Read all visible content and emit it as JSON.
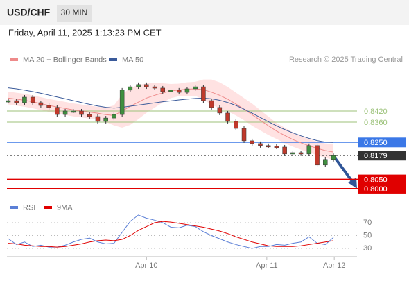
{
  "header": {
    "symbol": "USD/CHF",
    "timeframe": "30 MIN",
    "timestamp": "Friday, April 11, 2025 1:13:23 PM CET",
    "credit": "Research © 2025 Trading Central"
  },
  "chart_data": [
    {
      "type": "candle-line",
      "values": [
        0.8476,
        0.8465,
        0.8495,
        0.8465,
        0.845,
        0.8439,
        0.8401,
        0.842,
        0.842,
        0.8401,
        0.839,
        0.8364,
        0.8382,
        0.8401,
        0.8533,
        0.8551,
        0.8563,
        0.8551,
        0.8544,
        0.8525,
        0.8533,
        0.8521,
        0.854,
        0.8551,
        0.8476,
        0.8439,
        0.8409,
        0.8364,
        0.8326,
        0.8259,
        0.8244,
        0.8233,
        0.8229,
        0.8225,
        0.8188,
        0.8195,
        0.8188,
        0.8233,
        0.8128,
        0.8158,
        0.8179
      ],
      "series": [
        {
          "name": "MA 20 + Bollinger Bands",
          "color": "#ee8a8a",
          "values": [
            0.849,
            0.8484,
            0.8478,
            0.847,
            0.846,
            0.845,
            0.8442,
            0.8434,
            0.8426,
            0.842,
            0.8414,
            0.8408,
            0.84,
            0.8396,
            0.842,
            0.8445,
            0.8468,
            0.849,
            0.8505,
            0.8518,
            0.8528,
            0.8534,
            0.8538,
            0.854,
            0.8536,
            0.8522,
            0.8505,
            0.8484,
            0.8458,
            0.843,
            0.84,
            0.837,
            0.834,
            0.8312,
            0.8288,
            0.8266,
            0.8248,
            0.8232,
            0.8218,
            0.8206,
            0.8198
          ]
        },
        {
          "name": "MA 50",
          "color": "#3a5a9a",
          "values": [
            0.8545,
            0.854,
            0.8533,
            0.8525,
            0.8516,
            0.8506,
            0.8496,
            0.8486,
            0.8476,
            0.8466,
            0.8456,
            0.8447,
            0.844,
            0.8436,
            0.844,
            0.8446,
            0.8452,
            0.8458,
            0.8464,
            0.847,
            0.8475,
            0.848,
            0.8484,
            0.8488,
            0.849,
            0.8486,
            0.8478,
            0.8466,
            0.845,
            0.843,
            0.8408,
            0.8385,
            0.8362,
            0.834,
            0.832,
            0.8302,
            0.8286,
            0.8272,
            0.826,
            0.8252,
            0.825
          ]
        }
      ],
      "band": {
        "color": "#ffd6d6",
        "upper": [
          0.8525,
          0.8519,
          0.8513,
          0.8505,
          0.8495,
          0.8485,
          0.8477,
          0.8469,
          0.8461,
          0.8455,
          0.8449,
          0.8443,
          0.844,
          0.845,
          0.851,
          0.8545,
          0.856,
          0.857,
          0.8572,
          0.857,
          0.8566,
          0.8568,
          0.8575,
          0.8578,
          0.859,
          0.859,
          0.8575,
          0.855,
          0.852,
          0.849,
          0.846,
          0.8425,
          0.839,
          0.8355,
          0.833,
          0.8305,
          0.8285,
          0.8268,
          0.8255,
          0.8245,
          0.824
        ],
        "lower": [
          0.8455,
          0.8449,
          0.8443,
          0.8435,
          0.8425,
          0.8415,
          0.8407,
          0.8399,
          0.8391,
          0.8385,
          0.8379,
          0.8373,
          0.836,
          0.8342,
          0.833,
          0.8345,
          0.8376,
          0.841,
          0.8438,
          0.8466,
          0.849,
          0.85,
          0.8501,
          0.8502,
          0.8482,
          0.8454,
          0.8435,
          0.8418,
          0.8396,
          0.837,
          0.834,
          0.8315,
          0.829,
          0.8269,
          0.8246,
          0.8227,
          0.8211,
          0.8196,
          0.8181,
          0.8167,
          0.8156
        ]
      },
      "up_color": "#3f8f3f",
      "down_color": "#c0392b",
      "levels": [
        {
          "value": 0.842,
          "label": "0.8420",
          "color": "#9cc27a",
          "style": "text"
        },
        {
          "value": 0.836,
          "label": "0.8360",
          "color": "#9cc27a",
          "style": "text"
        },
        {
          "value": 0.825,
          "label": "0.8250",
          "color": "#3b78e7",
          "style": "box"
        },
        {
          "value": 0.8179,
          "label": "0.8179",
          "color": "#333333",
          "style": "current"
        },
        {
          "value": 0.805,
          "label": "0.8050",
          "color": "#e00000",
          "style": "box"
        },
        {
          "value": 0.8,
          "label": "0.8000",
          "color": "#e00000",
          "style": "box"
        }
      ],
      "xlim": [
        -0.17,
        42.9
      ],
      "ylim": [
        0.7951,
        0.8645
      ]
    },
    {
      "type": "line",
      "series": [
        {
          "name": "RSI",
          "color": "#5b7fd6",
          "values": [
            45,
            36,
            40,
            33,
            35,
            32,
            32,
            35,
            40,
            44,
            46,
            40,
            37,
            38,
            55,
            72,
            82,
            77,
            74,
            70,
            63,
            62,
            66,
            64,
            56,
            50,
            45,
            40,
            36,
            33,
            30,
            33,
            33,
            36,
            35,
            38,
            40,
            48,
            38,
            36,
            47
          ]
        },
        {
          "name": "9MA",
          "color": "#e00000",
          "values": [
            38,
            37,
            35,
            34,
            33,
            33,
            32,
            33,
            35,
            37,
            40,
            42,
            43,
            42,
            44,
            50,
            58,
            64,
            70,
            72,
            71,
            69,
            67,
            65,
            63,
            60,
            57,
            53,
            48,
            44,
            40,
            37,
            34,
            33,
            33,
            33,
            34,
            36,
            38,
            40,
            42
          ]
        }
      ],
      "xlim": [
        -0.17,
        42.9
      ],
      "ylim": [
        17,
        87.3
      ],
      "yticks": [
        70,
        50,
        30
      ],
      "grid": true,
      "xticks": [
        {
          "value": 17,
          "label": "Apr 10"
        },
        {
          "value": 31.8,
          "label": "Apr 11"
        },
        {
          "value": 40.1,
          "label": "Apr 12"
        }
      ]
    }
  ]
}
